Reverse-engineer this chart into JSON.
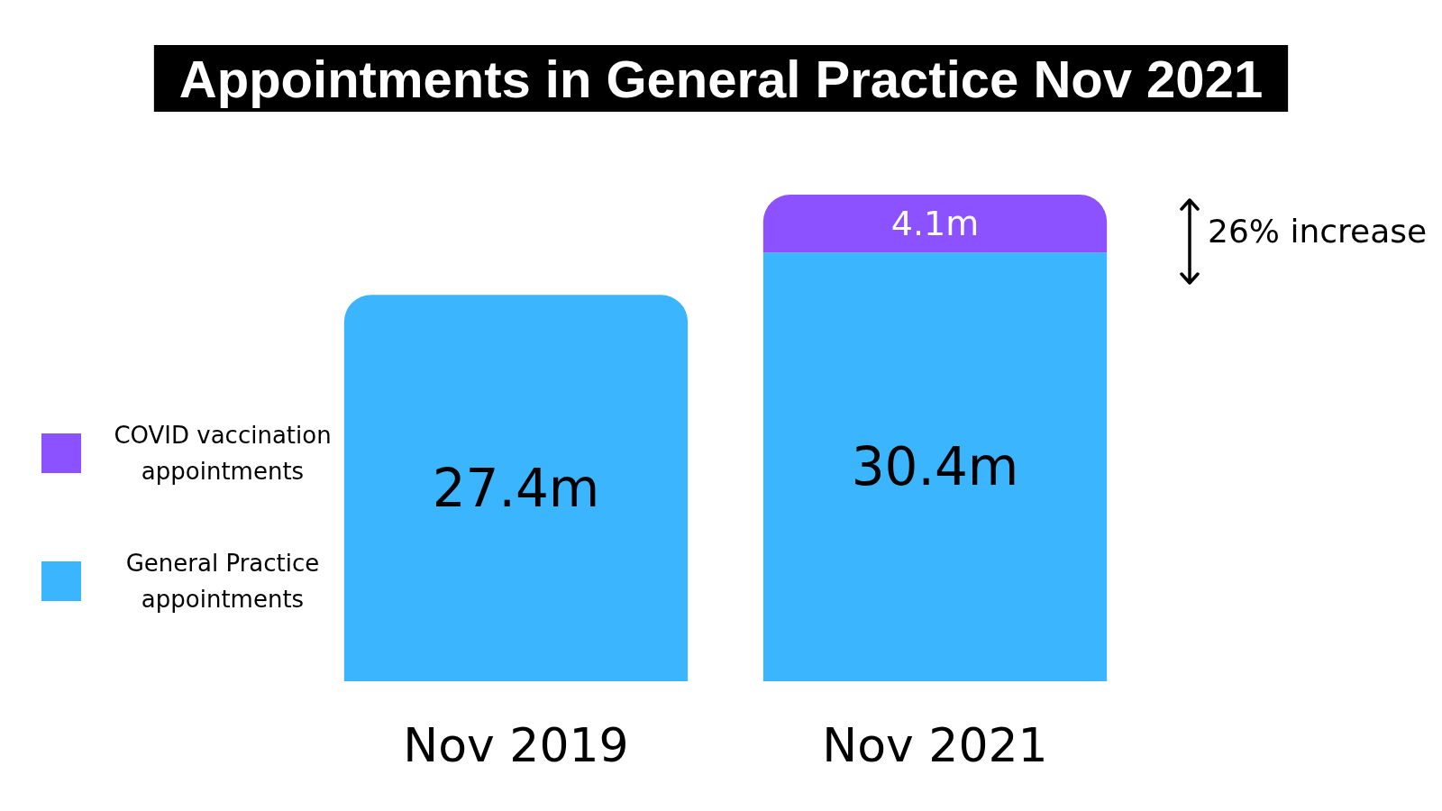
{
  "chart_data": {
    "type": "bar",
    "title": "Appointments in General Practice Nov 2021",
    "categories": [
      "Nov 2019",
      "Nov 2021"
    ],
    "stacked": true,
    "series": [
      {
        "name": "General Practice appointments",
        "color": "#3bb5fd",
        "values": [
          27.4,
          30.4
        ],
        "value_labels": [
          "27.4m",
          "30.4m"
        ]
      },
      {
        "name": "COVID vaccination appointments",
        "color": "#8c52ff",
        "values": [
          null,
          4.1
        ],
        "value_labels": [
          null,
          "4.1m"
        ]
      }
    ],
    "legend": "left",
    "annotations": [
      "26% increase"
    ]
  }
}
